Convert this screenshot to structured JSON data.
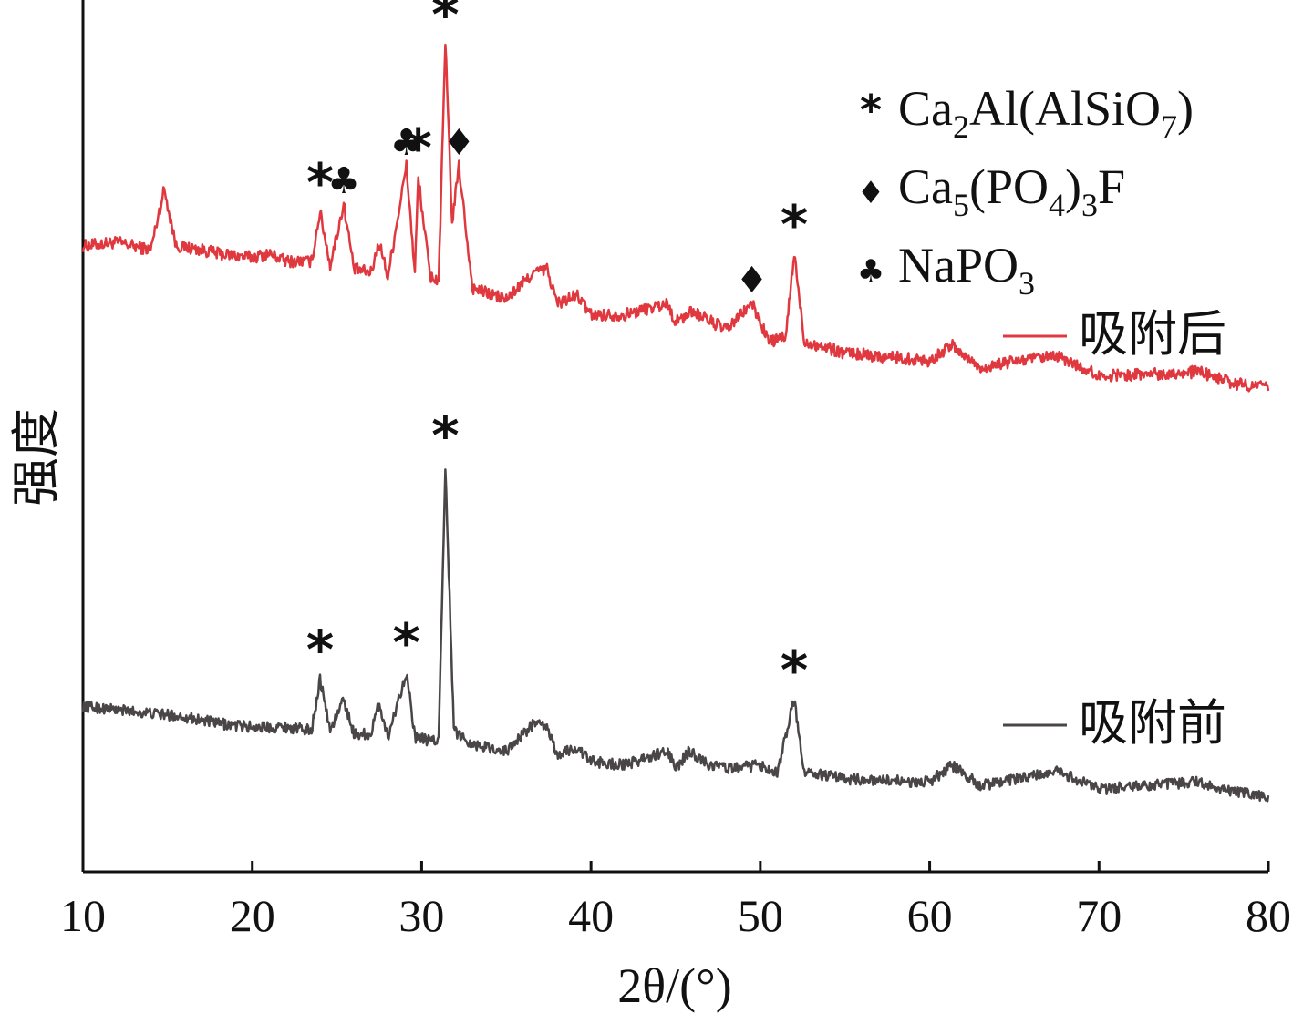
{
  "chart_data": {
    "type": "line",
    "xlabel": "2θ/(°)",
    "ylabel": "强度",
    "xlim": [
      10,
      80
    ],
    "x_ticks": [
      10,
      20,
      30,
      40,
      50,
      60,
      70,
      80
    ],
    "y_ticks_shown": false,
    "grid": false,
    "series": [
      {
        "name": "吸附后",
        "color": "#e0383f",
        "x": [
          10,
          12,
          14,
          14.8,
          15.5,
          17,
          18,
          20,
          21,
          22,
          23.5,
          24,
          24.6,
          25.4,
          26,
          27,
          27.5,
          28,
          29.1,
          29.6,
          29.8,
          30.5,
          31,
          31.4,
          31.8,
          32.2,
          33,
          35,
          36.6,
          37.4,
          38,
          39.2,
          40,
          42,
          44.5,
          45,
          46,
          48,
          49.5,
          50.5,
          51.5,
          52,
          52.6,
          55,
          60,
          61.3,
          63,
          65.2,
          67.6,
          70,
          75.9,
          78,
          80
        ],
        "y": [
          47,
          48,
          46,
          62,
          47,
          46,
          45,
          44,
          45,
          43,
          43,
          56,
          42,
          58,
          41,
          40,
          48,
          39,
          68,
          40,
          65,
          39,
          38,
          100,
          53,
          68,
          36,
          33,
          40,
          41,
          32,
          34,
          29,
          29,
          32,
          27,
          30,
          25,
          32,
          22,
          23,
          45,
          22,
          19,
          17,
          21,
          15,
          17,
          18,
          13,
          14,
          11,
          10
        ]
      },
      {
        "name": "吸附前",
        "color": "#4a4648",
        "x": [
          10,
          12,
          14,
          16,
          18,
          20,
          22,
          23.5,
          24,
          24.6,
          25.4,
          26,
          27,
          27.5,
          28,
          29.1,
          29.6,
          30.5,
          31,
          31.4,
          31.9,
          33,
          35,
          36.6,
          37.4,
          38,
          39.2,
          40,
          42,
          44.5,
          45,
          45.8,
          47,
          48.5,
          50,
          51,
          52,
          52.6,
          55,
          60,
          61.3,
          63,
          65.2,
          67.6,
          70,
          75.9,
          78,
          80
        ],
        "y": [
          30,
          29,
          28,
          27,
          25,
          24,
          24,
          23,
          38,
          23,
          32,
          22,
          22,
          31,
          21,
          40,
          21,
          20,
          20,
          100,
          23,
          19,
          17,
          25,
          24,
          16,
          18,
          14,
          13,
          17,
          12,
          17,
          13,
          12,
          13,
          11,
          32,
          11,
          9,
          8,
          13,
          7,
          9,
          11,
          6,
          8,
          5,
          4
        ]
      }
    ],
    "peak_markers": [
      {
        "symbol": "*",
        "series": "吸附后",
        "x": 24.0
      },
      {
        "symbol": "♣",
        "series": "吸附后",
        "x": 25.4
      },
      {
        "symbol": "♣",
        "series": "吸附后",
        "x": 29.1
      },
      {
        "symbol": "*",
        "series": "吸附后",
        "x": 29.8
      },
      {
        "symbol": "*",
        "series": "吸附后",
        "x": 31.4
      },
      {
        "symbol": "♦",
        "series": "吸附后",
        "x": 32.2
      },
      {
        "symbol": "♦",
        "series": "吸附后",
        "x": 49.5
      },
      {
        "symbol": "*",
        "series": "吸附后",
        "x": 52.0
      },
      {
        "symbol": "*",
        "series": "吸附前",
        "x": 24.0
      },
      {
        "symbol": "*",
        "series": "吸附前",
        "x": 29.1
      },
      {
        "symbol": "*",
        "series": "吸附前",
        "x": 31.4
      },
      {
        "symbol": "*",
        "series": "吸附前",
        "x": 52.0
      }
    ],
    "phase_legend": [
      {
        "symbol": "*",
        "label": "Ca2Al(AlSiO7)"
      },
      {
        "symbol": "♦",
        "label": "Ca5(PO4)3F"
      },
      {
        "symbol": "♣",
        "label": "NaPO3"
      }
    ],
    "series_legend": [
      {
        "label": "吸附后",
        "color": "#e0383f"
      },
      {
        "label": "吸附前",
        "color": "#4a4648"
      }
    ]
  }
}
